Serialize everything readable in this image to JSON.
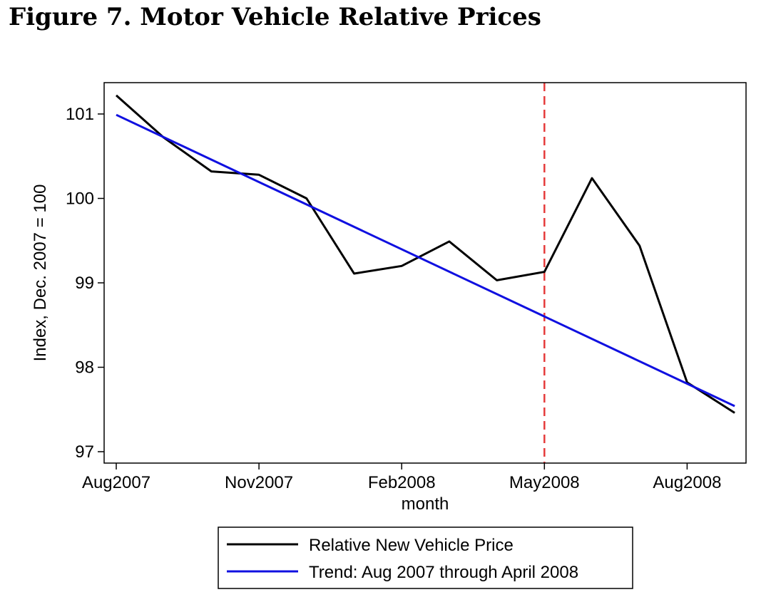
{
  "figure_title": "Figure 7. Motor Vehicle Relative Prices",
  "chart_data": {
    "type": "line",
    "title": "Figure 7. Motor Vehicle Relative Prices",
    "xlabel": "month",
    "ylabel": "Index, Dec. 2007 = 100",
    "x": [
      "Aug2007",
      "Sep2007",
      "Oct2007",
      "Nov2007",
      "Dec2007",
      "Jan2008",
      "Feb2008",
      "Mar2008",
      "Apr2008",
      "May2008",
      "Jun2008",
      "Jul2008",
      "Aug2008",
      "Sep2008"
    ],
    "x_tick_labels": [
      "Aug2007",
      "Nov2007",
      "Feb2008",
      "May2008",
      "Aug2008"
    ],
    "y_ticks": [
      97,
      98,
      99,
      100,
      101
    ],
    "ylim": [
      96.9,
      101.35
    ],
    "series": [
      {
        "name": "Relative New Vehicle Price",
        "color": "#000000",
        "values": [
          101.22,
          100.72,
          100.32,
          100.28,
          100.0,
          99.11,
          99.2,
          99.49,
          99.03,
          99.13,
          100.24,
          99.44,
          97.82,
          97.46
        ]
      },
      {
        "name": "Trend: Aug 2007 through April 2008",
        "color": "#1010e0",
        "start": {
          "x": "Aug2007",
          "y": 100.99
        },
        "end": {
          "x": "Sep2008",
          "y": 97.54
        }
      }
    ],
    "reference_line": {
      "x": "May2008",
      "color": "#e53b3b",
      "style": "dashed"
    },
    "legend_position": "bottom",
    "grid": false
  }
}
